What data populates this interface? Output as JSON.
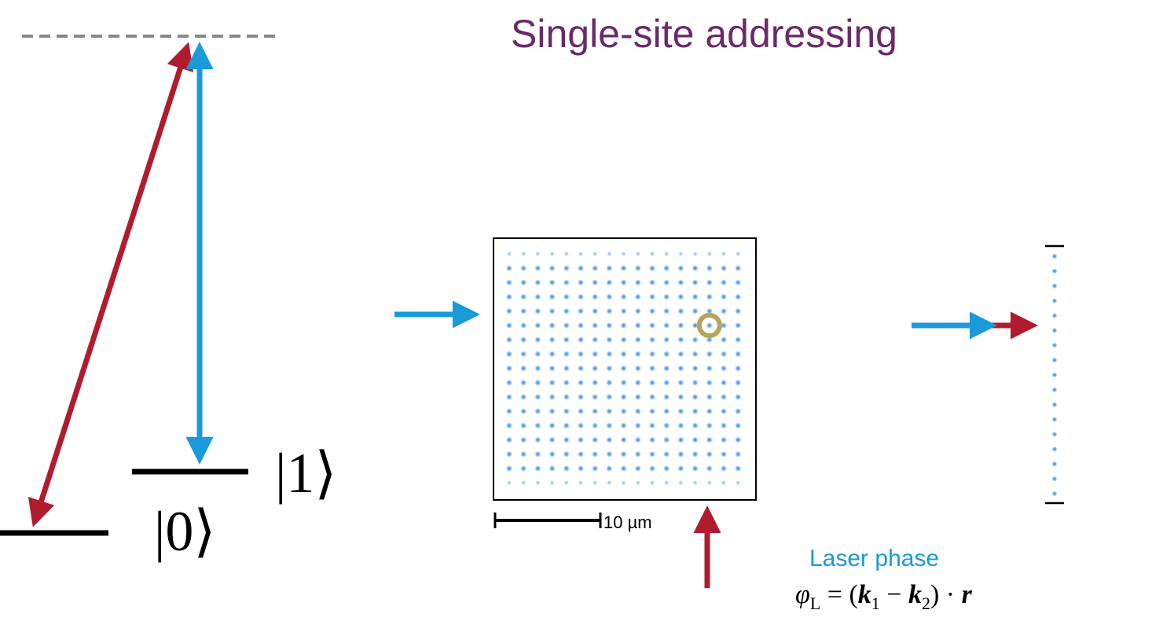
{
  "title": "Single-site addressing",
  "levels": {
    "ket_zero": "|0⟩",
    "ket_one": "|1⟩"
  },
  "lattice": {
    "scale_bar_label": "10 µm",
    "rows": 17,
    "cols": 17,
    "addressed_site": {
      "row": 5,
      "col": 14
    }
  },
  "laser": {
    "label": "Laser phase",
    "formula": "φL = (k1 − k2) · r"
  },
  "colors": {
    "blue_beam": "#1a9ad8",
    "red_beam": "#b01c2e",
    "title": "#6a2a6b",
    "site": "#2a7fd8",
    "highlight": "#b5a45a",
    "virtual_level": "#888888"
  }
}
